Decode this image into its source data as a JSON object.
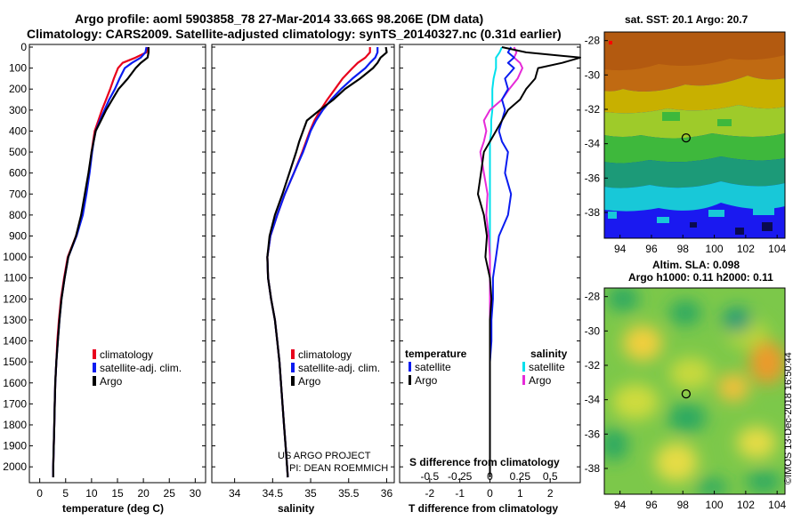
{
  "header": {
    "title_line1": "Argo profile: aoml 5903858_78 27-Mar-2014 33.66S 98.206E (DM data)",
    "title_line2": "Climatology: CARS2009. Satellite-adjusted climatology: synTS_20140327.nc (0.31d earlier)"
  },
  "depth_ticks": [
    "0",
    "100",
    "200",
    "300",
    "400",
    "500",
    "600",
    "700",
    "800",
    "900",
    "1000",
    "1100",
    "1200",
    "1300",
    "1400",
    "1500",
    "1600",
    "1700",
    "1800",
    "1900",
    "2000"
  ],
  "colors": {
    "climatology": "#e8001c",
    "satellite": "#0a1cf0",
    "argo": "#000000",
    "sat_salinity": "#00e0ec",
    "argo_salinity": "#e62ad8"
  },
  "chart_data": [
    {
      "type": "line",
      "name": "temperature-profile",
      "xlabel": "temperature (deg C)",
      "xlim": [
        -2,
        32
      ],
      "ylim": [
        2050,
        0
      ],
      "xticks": [
        "0",
        "5",
        "10",
        "15",
        "20",
        "25",
        "30"
      ],
      "depth": [
        0,
        25,
        50,
        75,
        100,
        150,
        200,
        250,
        300,
        350,
        400,
        450,
        500,
        600,
        700,
        800,
        900,
        1000,
        1100,
        1200,
        1300,
        1400,
        1500,
        1600,
        1700,
        1800,
        1900,
        2000,
        2050
      ],
      "series": [
        {
          "name": "climatology",
          "values": [
            20.8,
            20.6,
            18.5,
            16.0,
            15.1,
            14.3,
            13.6,
            12.8,
            12.0,
            11.3,
            10.6,
            10.3,
            10.0,
            9.5,
            8.9,
            8.2,
            7.0,
            5.4,
            4.7,
            4.1,
            3.7,
            3.4,
            3.2,
            3.0,
            2.9,
            2.8,
            2.7,
            2.6,
            2.6
          ]
        },
        {
          "name": "satellite",
          "values": [
            20.6,
            20.4,
            19.5,
            17.8,
            16.4,
            15.4,
            14.5,
            13.4,
            12.5,
            11.6,
            10.8,
            10.4,
            10.1,
            9.6,
            9.0,
            8.3,
            7.1,
            5.5,
            4.8,
            4.2,
            3.8,
            3.5,
            3.2,
            3.0,
            2.9,
            2.8,
            2.7,
            2.6,
            2.6
          ]
        },
        {
          "name": "Argo",
          "values": [
            21.0,
            21.0,
            20.8,
            19.5,
            18.5,
            17.0,
            15.2,
            14.0,
            12.8,
            11.8,
            10.8,
            10.4,
            10.0,
            9.4,
            8.7,
            8.0,
            7.0,
            5.5,
            4.8,
            4.2,
            3.8,
            3.5,
            3.2,
            3.0,
            2.9,
            2.8,
            2.7,
            2.6,
            2.6
          ]
        }
      ],
      "legend": [
        "climatology",
        "satellite-adj. clim.",
        "Argo"
      ],
      "annotation": []
    },
    {
      "type": "line",
      "name": "salinity-profile",
      "xlabel": "salinity",
      "xlim": [
        33.7,
        36.1
      ],
      "ylim": [
        2050,
        0
      ],
      "xticks": [
        "34",
        "34.5",
        "35",
        "35.5",
        "36"
      ],
      "depth": [
        0,
        25,
        50,
        75,
        100,
        150,
        200,
        250,
        300,
        350,
        400,
        450,
        500,
        600,
        700,
        800,
        900,
        1000,
        1100,
        1200,
        1300,
        1400,
        1500,
        1600,
        1700,
        1800,
        1900,
        2000,
        2050
      ],
      "series": [
        {
          "name": "climatology",
          "values": [
            35.78,
            35.78,
            35.72,
            35.62,
            35.55,
            35.42,
            35.32,
            35.22,
            35.13,
            35.05,
            34.99,
            34.94,
            34.89,
            34.78,
            34.66,
            34.56,
            34.47,
            34.43,
            34.44,
            34.48,
            34.53,
            34.56,
            34.59,
            34.61,
            34.63,
            34.65,
            34.67,
            34.69,
            34.7
          ]
        },
        {
          "name": "satellite",
          "values": [
            35.88,
            35.88,
            35.85,
            35.78,
            35.72,
            35.55,
            35.4,
            35.27,
            35.16,
            35.07,
            35.0,
            34.95,
            34.9,
            34.78,
            34.66,
            34.56,
            34.47,
            34.43,
            34.44,
            34.48,
            34.53,
            34.56,
            34.59,
            34.61,
            34.63,
            34.65,
            34.67,
            34.69,
            34.7
          ]
        },
        {
          "name": "Argo",
          "values": [
            35.99,
            36.0,
            35.92,
            35.88,
            35.82,
            35.65,
            35.45,
            35.3,
            35.12,
            34.95,
            34.9,
            34.85,
            34.81,
            34.72,
            34.63,
            34.53,
            34.46,
            34.43,
            34.44,
            34.48,
            34.53,
            34.56,
            34.59,
            34.61,
            34.63,
            34.65,
            34.67,
            34.69,
            34.7
          ]
        }
      ],
      "legend": [
        "climatology",
        "satellite-adj. clim.",
        "Argo"
      ],
      "annotation": [
        "US ARGO PROJECT",
        "PI: DEAN ROEMMICH"
      ]
    },
    {
      "type": "line",
      "name": "difference-profile",
      "xlabel": "T difference from climatology",
      "xlabel_top": "S difference from climatology",
      "xlim": [
        -3,
        3
      ],
      "ylim": [
        2050,
        0
      ],
      "xticks": [
        "-2",
        "-1",
        "0",
        "1",
        "2"
      ],
      "xticks_top": [
        "-0.5",
        "-0.25",
        "0",
        "0.25",
        "0.5"
      ],
      "depth": [
        0,
        25,
        50,
        75,
        100,
        150,
        200,
        250,
        300,
        350,
        400,
        450,
        500,
        600,
        700,
        800,
        900,
        1000,
        1100,
        1200,
        1300,
        1400,
        1500,
        1600,
        1700,
        1800,
        1900,
        2000,
        2050
      ],
      "series": [
        {
          "name": "T satellite",
          "values": [
            0.7,
            0.6,
            0.8,
            0.6,
            0.8,
            0.5,
            0.6,
            0.4,
            0.5,
            0.4,
            0.3,
            0.4,
            0.6,
            0.5,
            0.7,
            0.6,
            0.3,
            0.2,
            0.1,
            0.1,
            0.05,
            0.05,
            0.0,
            0.0,
            0.0,
            0.0,
            0.0,
            0.0,
            0.0
          ]
        },
        {
          "name": "T Argo",
          "values": [
            0.4,
            1.2,
            3.0,
            2.4,
            1.6,
            1.5,
            1.2,
            1.0,
            0.6,
            0.4,
            0.2,
            0.0,
            -0.2,
            -0.3,
            -0.4,
            -0.2,
            -0.1,
            -0.15,
            0.0,
            0.05,
            0.0,
            0.0,
            0.0,
            0.0,
            0.0,
            0.0,
            0.0,
            0.0,
            0.0
          ]
        },
        {
          "name": "S satellite",
          "values": [
            0.1,
            0.08,
            0.05,
            0.05,
            0.05,
            0.03,
            0.02,
            0.02,
            0.02,
            0.01,
            0.01,
            0.0,
            0.0,
            0.0,
            0.0,
            0.0,
            0.0,
            0.0,
            0.0,
            0.0,
            0.0,
            0.0,
            0.0,
            0.0,
            0.0,
            0.0,
            0.0,
            0.0,
            0.0
          ]
        },
        {
          "name": "S Argo",
          "values": [
            0.2,
            0.22,
            0.2,
            0.25,
            0.27,
            0.23,
            0.16,
            0.1,
            0.0,
            -0.05,
            -0.03,
            -0.05,
            -0.08,
            -0.05,
            -0.02,
            -0.03,
            -0.01,
            0.0,
            0.0,
            0.0,
            0.0,
            0.0,
            0.0,
            0.0,
            0.0,
            0.0,
            0.0,
            0.0,
            0.0
          ]
        }
      ],
      "legend_temperature": {
        "title": "temperature",
        "items": [
          "satellite",
          "Argo"
        ]
      },
      "legend_salinity": {
        "title": "salinity",
        "items": [
          "satellite",
          "Argo"
        ]
      }
    }
  ],
  "maps": {
    "sst": {
      "title": "sat. SST: 20.1 Argo: 20.7",
      "xticks": [
        "94",
        "96",
        "98",
        "100",
        "102",
        "104"
      ],
      "yticks": [
        "-28",
        "-30",
        "-32",
        "-34",
        "-36",
        "-38"
      ],
      "lon_range": [
        93,
        104.5
      ],
      "lat_range": [
        -39.5,
        -27.5
      ],
      "float_lon": 98.206,
      "float_lat": -33.66
    },
    "sla": {
      "title_line1": "Altim. SLA: 0.098",
      "title_line2": "Argo h1000: 0.11 h2000: 0.11",
      "xticks": [
        "94",
        "96",
        "98",
        "100",
        "102",
        "104"
      ],
      "yticks": [
        "-28",
        "-30",
        "-32",
        "-34",
        "-36",
        "-38"
      ],
      "lon_range": [
        93,
        104.5
      ],
      "lat_range": [
        -39.5,
        -27.5
      ],
      "float_lon": 98.206,
      "float_lat": -33.66
    }
  },
  "footer_stamp": "©IMOS 13-Dec-2018 16:50:44"
}
